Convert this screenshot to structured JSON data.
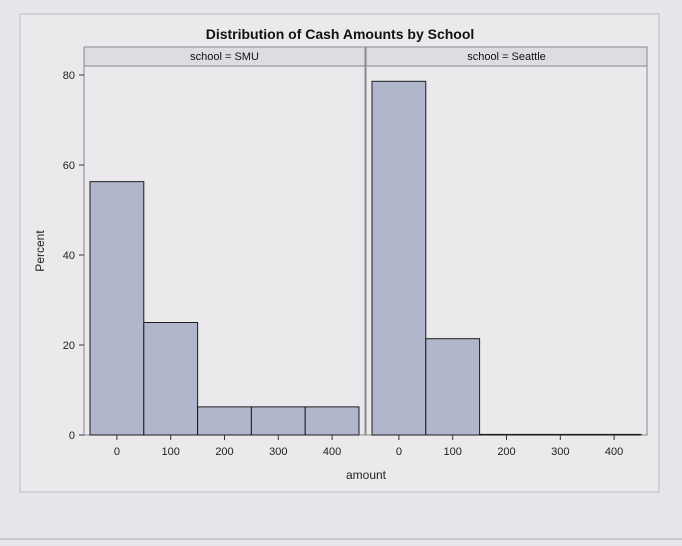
{
  "chart_data": {
    "type": "bar",
    "title": "Distribution of Cash Amounts by School",
    "xlabel": "amount",
    "ylabel": "Percent",
    "ylim": [
      0,
      82
    ],
    "yticks": [
      "0",
      "20",
      "40",
      "60",
      "80"
    ],
    "xticks": [
      "0",
      "100",
      "200",
      "300",
      "400"
    ],
    "xlim": [
      -50,
      450
    ],
    "bin_width": 100,
    "bar_fill": "#b0b7cc",
    "bar_stroke": "#1c1c1c",
    "grid": false,
    "panels": [
      {
        "header": "school = SMU",
        "bins": [
          0,
          100,
          200,
          300,
          400
        ],
        "values": [
          56.3,
          25.0,
          6.25,
          6.25,
          6.25
        ]
      },
      {
        "header": "school = Seattle",
        "bins": [
          0,
          100,
          200,
          300,
          400
        ],
        "values": [
          78.6,
          21.4,
          0,
          0,
          0
        ]
      }
    ]
  }
}
